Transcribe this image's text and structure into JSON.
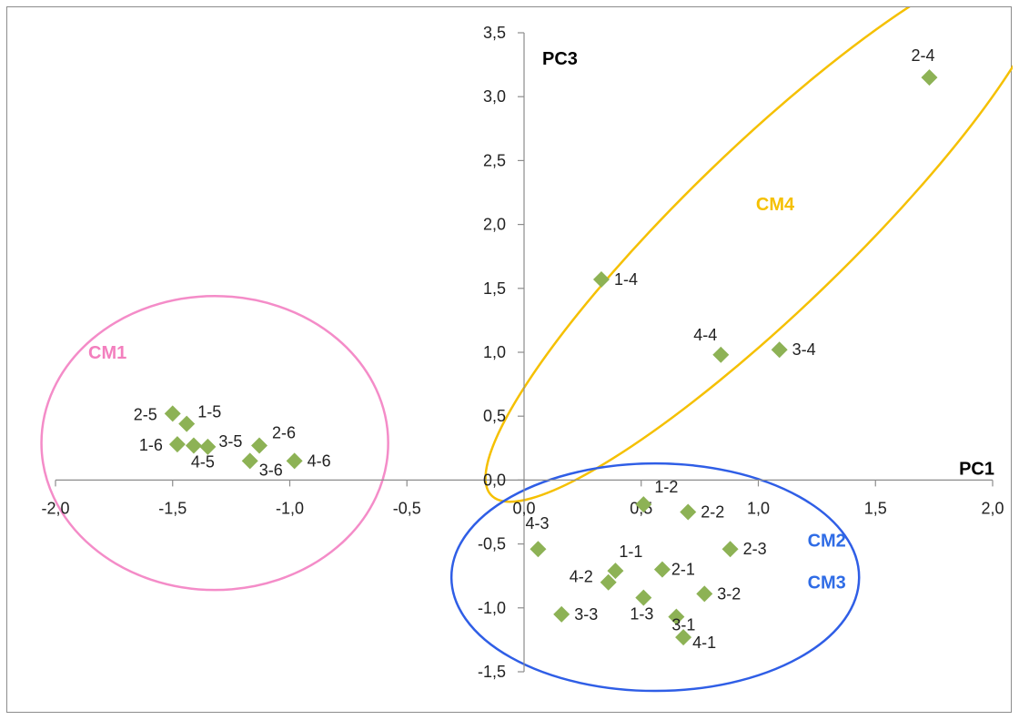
{
  "chart_data": {
    "type": "scatter",
    "xlabel": "PC1",
    "ylabel": "PC3",
    "xlim": [
      -2.0,
      2.0
    ],
    "ylim": [
      -1.5,
      3.5
    ],
    "x_ticks": [
      "-2,0",
      "-1,5",
      "-1,0",
      "-0,5",
      "0,0",
      "0,5",
      "1,0",
      "1,5",
      "2,0"
    ],
    "x_tick_values": [
      -2.0,
      -1.5,
      -1.0,
      -0.5,
      0.0,
      0.5,
      1.0,
      1.5,
      2.0
    ],
    "y_ticks": [
      "-1,5",
      "-1,0",
      "-0,5",
      "0,0",
      "0,5",
      "1,0",
      "1,5",
      "2,0",
      "2,5",
      "3,0",
      "3,5"
    ],
    "y_tick_values": [
      -1.5,
      -1.0,
      -0.5,
      0.0,
      0.5,
      1.0,
      1.5,
      2.0,
      2.5,
      3.0,
      3.5
    ],
    "grid": false,
    "marker": "diamond",
    "marker_color": "#8db255",
    "points": [
      {
        "label": "2-4",
        "x": 1.73,
        "y": 3.15
      },
      {
        "label": "1-4",
        "x": 0.33,
        "y": 1.57
      },
      {
        "label": "4-4",
        "x": 0.84,
        "y": 0.98
      },
      {
        "label": "3-4",
        "x": 1.09,
        "y": 1.02
      },
      {
        "label": "2-5",
        "x": -1.5,
        "y": 0.52
      },
      {
        "label": "1-5",
        "x": -1.44,
        "y": 0.44
      },
      {
        "label": "1-6",
        "x": -1.48,
        "y": 0.28
      },
      {
        "label": "4-5",
        "x": -1.41,
        "y": 0.27
      },
      {
        "label": "3-5",
        "x": -1.35,
        "y": 0.26
      },
      {
        "label": "2-6",
        "x": -1.13,
        "y": 0.27
      },
      {
        "label": "3-6",
        "x": -1.17,
        "y": 0.15
      },
      {
        "label": "4-6",
        "x": -0.98,
        "y": 0.15
      },
      {
        "label": "1-2",
        "x": 0.51,
        "y": -0.19
      },
      {
        "label": "2-2",
        "x": 0.7,
        "y": -0.25
      },
      {
        "label": "4-3",
        "x": 0.06,
        "y": -0.54
      },
      {
        "label": "2-3",
        "x": 0.88,
        "y": -0.54
      },
      {
        "label": "1-1",
        "x": 0.39,
        "y": -0.71
      },
      {
        "label": "4-2",
        "x": 0.36,
        "y": -0.8
      },
      {
        "label": "2-1",
        "x": 0.59,
        "y": -0.7
      },
      {
        "label": "3-2",
        "x": 0.77,
        "y": -0.89
      },
      {
        "label": "1-3",
        "x": 0.51,
        "y": -0.92
      },
      {
        "label": "3-3",
        "x": 0.16,
        "y": -1.05
      },
      {
        "label": "3-1",
        "x": 0.65,
        "y": -1.07
      },
      {
        "label": "4-1",
        "x": 0.68,
        "y": -1.23
      }
    ],
    "annotations": [
      {
        "text": "CM1",
        "color": "#f37fbe"
      },
      {
        "text": "CM4",
        "color": "#f5c000"
      },
      {
        "text": "CM2",
        "color": "#2f6ce6"
      },
      {
        "text": "CM3",
        "color": "#2f6ce6"
      }
    ],
    "cluster_outlines": [
      {
        "group": "CM1",
        "color": "#f48cc8"
      },
      {
        "group": "CM4",
        "color": "#f5c000"
      },
      {
        "group": "CM2/CM3",
        "color": "#2f5ee6"
      }
    ]
  }
}
